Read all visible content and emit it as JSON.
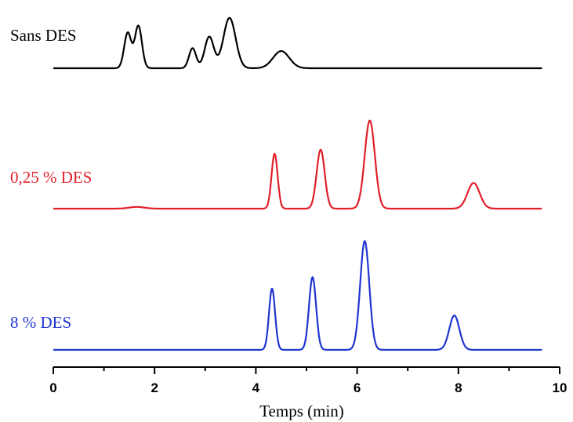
{
  "chart_data": {
    "type": "line",
    "title": "",
    "xlabel": "Temps (min)",
    "ylabel": "",
    "xlim": [
      0,
      10
    ],
    "xticks": [
      0,
      2,
      4,
      6,
      8,
      10
    ],
    "x_data_end": 9.65,
    "grid": false,
    "legend": "none",
    "y_axis_shown": false,
    "series": [
      {
        "name": "Sans DES",
        "color": "#000000",
        "baseline": 0.0,
        "peaks": [
          {
            "t": 1.47,
            "h": 0.62,
            "w": 0.07
          },
          {
            "t": 1.68,
            "h": 0.74,
            "w": 0.07
          },
          {
            "t": 2.75,
            "h": 0.35,
            "w": 0.07
          },
          {
            "t": 3.08,
            "h": 0.55,
            "w": 0.09
          },
          {
            "t": 3.48,
            "h": 0.88,
            "w": 0.12
          },
          {
            "t": 4.5,
            "h": 0.3,
            "w": 0.16
          }
        ]
      },
      {
        "name": "0,25 % DES",
        "color": "#e0202a",
        "baseline": 0.0,
        "peaks": [
          {
            "t": 1.65,
            "h": 0.03,
            "w": 0.15
          },
          {
            "t": 4.37,
            "h": 0.96,
            "w": 0.06
          },
          {
            "t": 5.28,
            "h": 1.03,
            "w": 0.08
          },
          {
            "t": 6.25,
            "h": 1.54,
            "w": 0.1
          },
          {
            "t": 8.3,
            "h": 0.45,
            "w": 0.12
          }
        ]
      },
      {
        "name": "8 % DES",
        "color": "#1f35d0",
        "baseline": 0.0,
        "peaks": [
          {
            "t": 4.32,
            "h": 1.07,
            "w": 0.06
          },
          {
            "t": 5.12,
            "h": 1.27,
            "w": 0.07
          },
          {
            "t": 6.15,
            "h": 1.9,
            "w": 0.09
          },
          {
            "t": 7.92,
            "h": 0.6,
            "w": 0.1
          }
        ]
      }
    ]
  }
}
